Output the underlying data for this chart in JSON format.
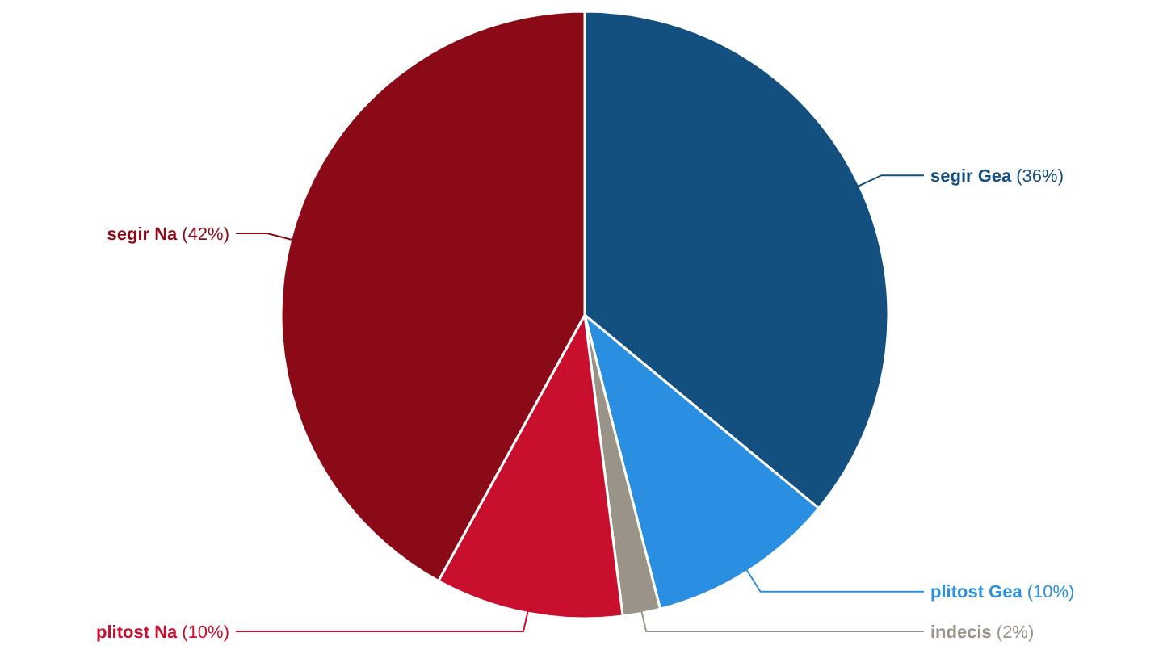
{
  "chart_data": {
    "type": "pie",
    "categories": [
      "segir Gea",
      "plitost Gea",
      "indecis",
      "plitost Na",
      "segir Na"
    ],
    "values": [
      36,
      10,
      2,
      10,
      42
    ],
    "colors": [
      "#134f7f",
      "#2a8fe0",
      "#9a9488",
      "#c8102e",
      "#8b0a17"
    ],
    "value_labels": [
      "(36%)",
      "(10%)",
      "(2%)",
      "(10%)",
      "(42%)"
    ]
  }
}
